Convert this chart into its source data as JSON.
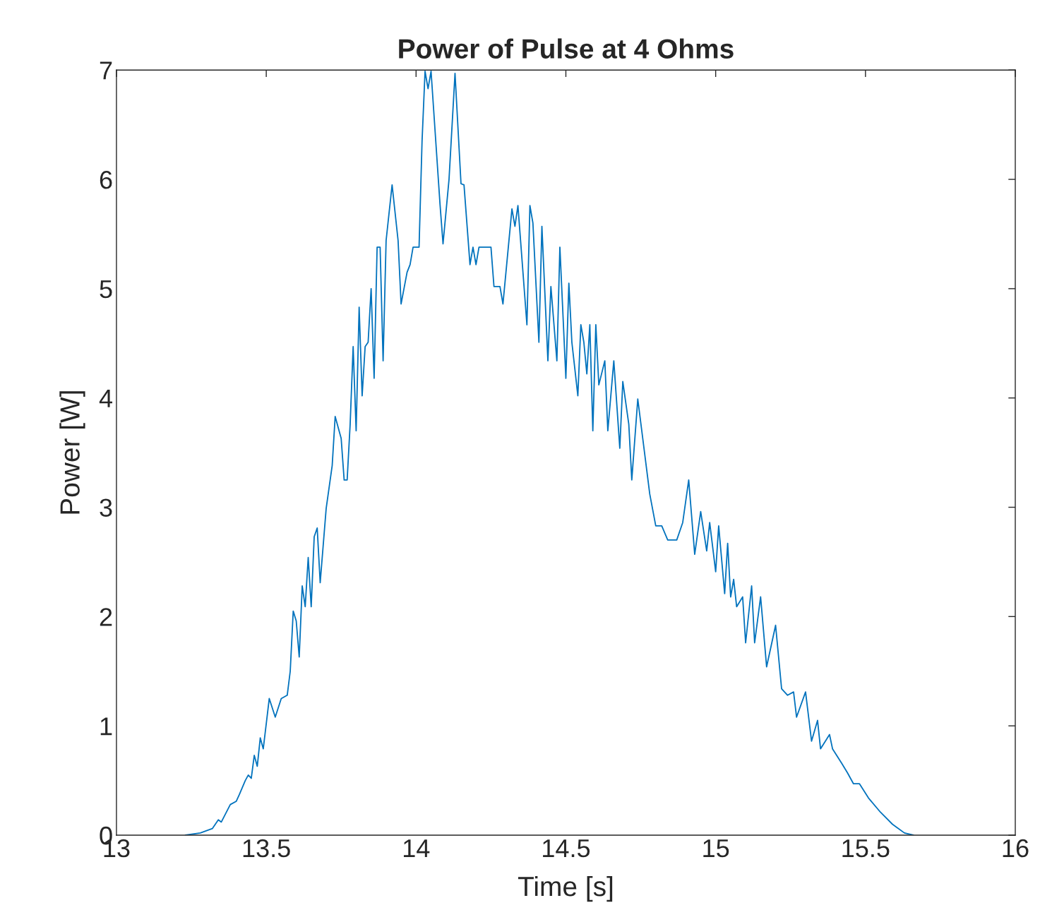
{
  "chart_data": {
    "type": "line",
    "title": "Power of Pulse at 4 Ohms",
    "xlabel": "Time [s]",
    "ylabel": "Power [W]",
    "xlim": [
      13,
      16
    ],
    "ylim": [
      0,
      7
    ],
    "xticks": [
      13,
      13.5,
      14,
      14.5,
      15,
      15.5,
      16
    ],
    "yticks": [
      0,
      1,
      2,
      3,
      4,
      5,
      6,
      7
    ],
    "x": [
      13.23,
      13.28,
      13.32,
      13.34,
      13.35,
      13.38,
      13.4,
      13.41,
      13.43,
      13.44,
      13.45,
      13.46,
      13.47,
      13.48,
      13.49,
      13.51,
      13.53,
      13.55,
      13.57,
      13.58,
      13.59,
      13.6,
      13.61,
      13.62,
      13.63,
      13.64,
      13.65,
      13.66,
      13.67,
      13.68,
      13.7,
      13.72,
      13.73,
      13.75,
      13.76,
      13.77,
      13.78,
      13.79,
      13.8,
      13.81,
      13.82,
      13.83,
      13.84,
      13.85,
      13.86,
      13.87,
      13.88,
      13.89,
      13.9,
      13.92,
      13.94,
      13.95,
      13.97,
      13.98,
      13.99,
      14.01,
      14.02,
      14.03,
      14.04,
      14.05,
      14.08,
      14.09,
      14.11,
      14.13,
      14.15,
      14.16,
      14.18,
      14.19,
      14.2,
      14.21,
      14.25,
      14.26,
      14.28,
      14.29,
      14.32,
      14.33,
      14.34,
      14.37,
      14.38,
      14.39,
      14.41,
      14.42,
      14.44,
      14.45,
      14.47,
      14.48,
      14.5,
      14.51,
      14.52,
      14.54,
      14.55,
      14.56,
      14.57,
      14.58,
      14.59,
      14.6,
      14.61,
      14.63,
      14.64,
      14.66,
      14.68,
      14.69,
      14.71,
      14.72,
      14.74,
      14.78,
      14.8,
      14.82,
      14.84,
      14.87,
      14.89,
      14.91,
      14.93,
      14.95,
      14.97,
      14.98,
      15.0,
      15.01,
      15.03,
      15.04,
      15.05,
      15.06,
      15.07,
      15.09,
      15.1,
      15.12,
      15.13,
      15.15,
      15.17,
      15.2,
      15.22,
      15.24,
      15.26,
      15.27,
      15.3,
      15.32,
      15.34,
      15.35,
      15.38,
      15.39,
      15.42,
      15.44,
      15.46,
      15.48,
      15.51,
      15.55,
      15.59,
      15.63,
      15.66
    ],
    "series": [
      {
        "color": "#0072bd",
        "values": [
          0,
          0.02,
          0.06,
          0.14,
          0.12,
          0.28,
          0.31,
          0.37,
          0.5,
          0.55,
          0.52,
          0.73,
          0.63,
          0.89,
          0.79,
          1.25,
          1.08,
          1.25,
          1.28,
          1.5,
          2.05,
          1.96,
          1.63,
          2.28,
          2.09,
          2.54,
          2.09,
          2.73,
          2.81,
          2.31,
          2.99,
          3.38,
          3.83,
          3.63,
          3.25,
          3.25,
          3.76,
          4.47,
          3.7,
          4.83,
          4.02,
          4.47,
          4.51,
          5.0,
          4.18,
          5.38,
          5.38,
          4.34,
          5.44,
          5.95,
          5.44,
          4.86,
          5.15,
          5.22,
          5.38,
          5.38,
          6.35,
          6.99,
          6.83,
          6.99,
          5.77,
          5.41,
          6.0,
          6.97,
          5.96,
          5.95,
          5.22,
          5.38,
          5.22,
          5.38,
          5.38,
          5.02,
          5.02,
          4.86,
          5.73,
          5.57,
          5.76,
          4.67,
          5.76,
          5.6,
          4.51,
          5.57,
          4.34,
          5.02,
          4.34,
          5.38,
          4.18,
          5.05,
          4.51,
          4.02,
          4.67,
          4.51,
          4.22,
          4.67,
          3.7,
          4.67,
          4.12,
          4.34,
          3.7,
          4.34,
          3.54,
          4.15,
          3.76,
          3.25,
          3.99,
          3.12,
          2.83,
          2.83,
          2.7,
          2.7,
          2.86,
          3.25,
          2.57,
          2.96,
          2.6,
          2.86,
          2.41,
          2.83,
          2.21,
          2.67,
          2.18,
          2.34,
          2.09,
          2.18,
          1.76,
          2.28,
          1.76,
          2.18,
          1.54,
          1.92,
          1.34,
          1.28,
          1.31,
          1.08,
          1.31,
          0.86,
          1.05,
          0.79,
          0.92,
          0.79,
          0.66,
          0.57,
          0.47,
          0.47,
          0.34,
          0.21,
          0.1,
          0.02,
          0
        ]
      }
    ]
  }
}
